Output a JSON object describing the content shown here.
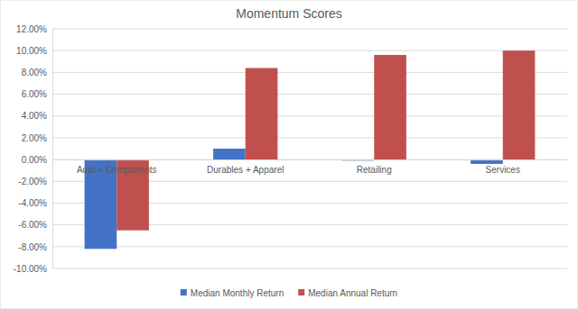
{
  "chart_data": {
    "type": "bar",
    "title": "Momentum Scores",
    "categories": [
      "Auto + Components",
      "Durables + Apparel",
      "Retailing",
      "Services"
    ],
    "series": [
      {
        "name": "Median Monthly Return",
        "color": "#4472c4",
        "values": [
          -8.2,
          1.0,
          -0.1,
          -0.4
        ]
      },
      {
        "name": "Median Annual Return",
        "color": "#c0504d",
        "values": [
          -6.5,
          8.4,
          9.6,
          10.0
        ]
      }
    ],
    "ylim": [
      -10,
      12
    ],
    "yticks": [
      {
        "value": -10,
        "label": "-10.00%"
      },
      {
        "value": -8,
        "label": "-8.00%"
      },
      {
        "value": -6,
        "label": "-6.00%"
      },
      {
        "value": -4,
        "label": "-4.00%"
      },
      {
        "value": -2,
        "label": "-2.00%"
      },
      {
        "value": 0,
        "label": "0.00%"
      },
      {
        "value": 2,
        "label": "2.00%"
      },
      {
        "value": 4,
        "label": "4.00%"
      },
      {
        "value": 6,
        "label": "6.00%"
      },
      {
        "value": 8,
        "label": "8.00%"
      },
      {
        "value": 10,
        "label": "10.00%"
      },
      {
        "value": 12,
        "label": "12.00%"
      }
    ],
    "grid": true,
    "legend": "bottom"
  }
}
